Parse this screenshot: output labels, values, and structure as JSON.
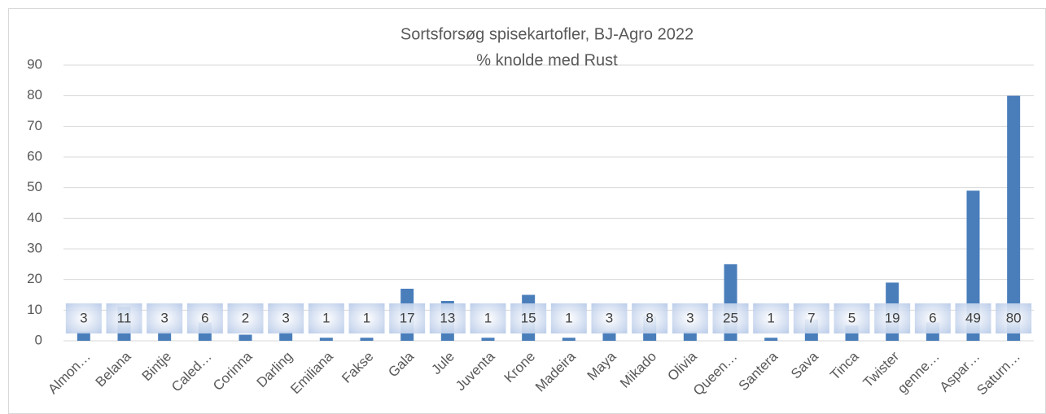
{
  "chart_data": {
    "type": "bar",
    "title": "Sortsforsøg spisekartofler, BJ-Agro 2022",
    "subtitle": "% knolde med Rust",
    "categories": [
      "Almon…",
      "Belana",
      "Bintje",
      "Caled…",
      "Corinna",
      "Darling",
      "Emiliana",
      "Fakse",
      "Gala",
      "Jule",
      "Juventa",
      "Krone",
      "Madeira",
      "Maya",
      "Mikado",
      "Olivia",
      "Queen…",
      "Santera",
      "Sava",
      "Tinca",
      "Twister",
      "genne…",
      "Aspar…",
      "Saturn…"
    ],
    "values": [
      3,
      11,
      3,
      6,
      2,
      3,
      1,
      1,
      17,
      13,
      1,
      15,
      1,
      3,
      8,
      3,
      25,
      1,
      7,
      5,
      19,
      6,
      49,
      80
    ],
    "color": "#4a7ebb",
    "ylim": [
      0,
      90
    ],
    "yticks": [
      0,
      10,
      20,
      30,
      40,
      50,
      60,
      70,
      80,
      90
    ],
    "grid": true
  }
}
